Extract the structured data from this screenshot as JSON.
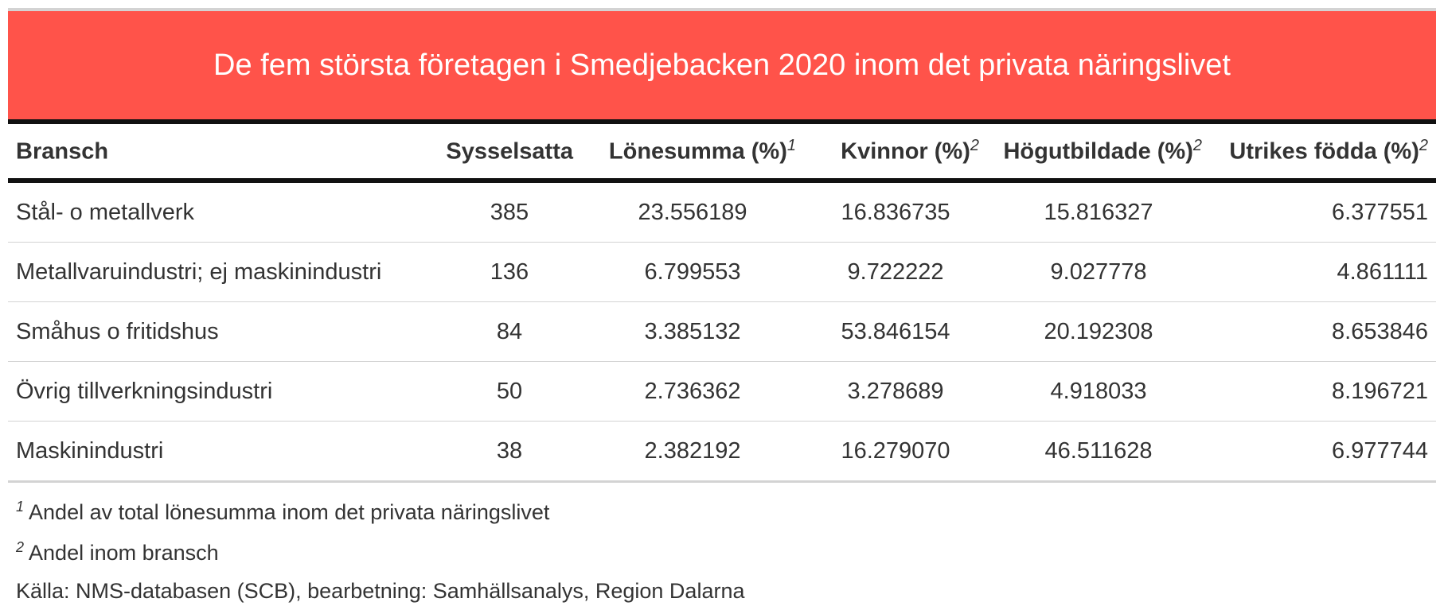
{
  "title": "De fem största företagen i Smedjebacken 2020 inom det privata näringslivet",
  "columns": [
    {
      "label": "Bransch",
      "sup": ""
    },
    {
      "label": "Sysselsatta",
      "sup": ""
    },
    {
      "label": "Lönesumma (%)",
      "sup": "1"
    },
    {
      "label": "Kvinnor (%)",
      "sup": "2"
    },
    {
      "label": "Högutbildade (%)",
      "sup": "2"
    },
    {
      "label": "Utrikes födda (%)",
      "sup": "2"
    }
  ],
  "rows": [
    [
      "Stål- o metallverk",
      "385",
      "23.556189",
      "16.836735",
      "15.816327",
      "6.377551"
    ],
    [
      "Metallvaruindustri; ej maskinindustri",
      "136",
      "6.799553",
      "9.722222",
      "9.027778",
      "4.861111"
    ],
    [
      "Småhus o fritidshus",
      "84",
      "3.385132",
      "53.846154",
      "20.192308",
      "8.653846"
    ],
    [
      "Övrig tillverkningsindustri",
      "50",
      "2.736362",
      "3.278689",
      "4.918033",
      "8.196721"
    ],
    [
      "Maskinindustri",
      "38",
      "2.382192",
      "16.279070",
      "46.511628",
      "6.977744"
    ]
  ],
  "footnotes": [
    {
      "mark": "1",
      "text": "Andel av total lönesumma inom det privata näringslivet"
    },
    {
      "mark": "2",
      "text": "Andel inom bransch"
    }
  ],
  "source": "Källa: NMS-databasen (SCB), bearbetning: Samhällsanalys, Region Dalarna",
  "colors": {
    "title_bg": "#ff534a",
    "title_text": "#ffffff",
    "rule": "#111111",
    "row_border": "#d3d3d3"
  }
}
